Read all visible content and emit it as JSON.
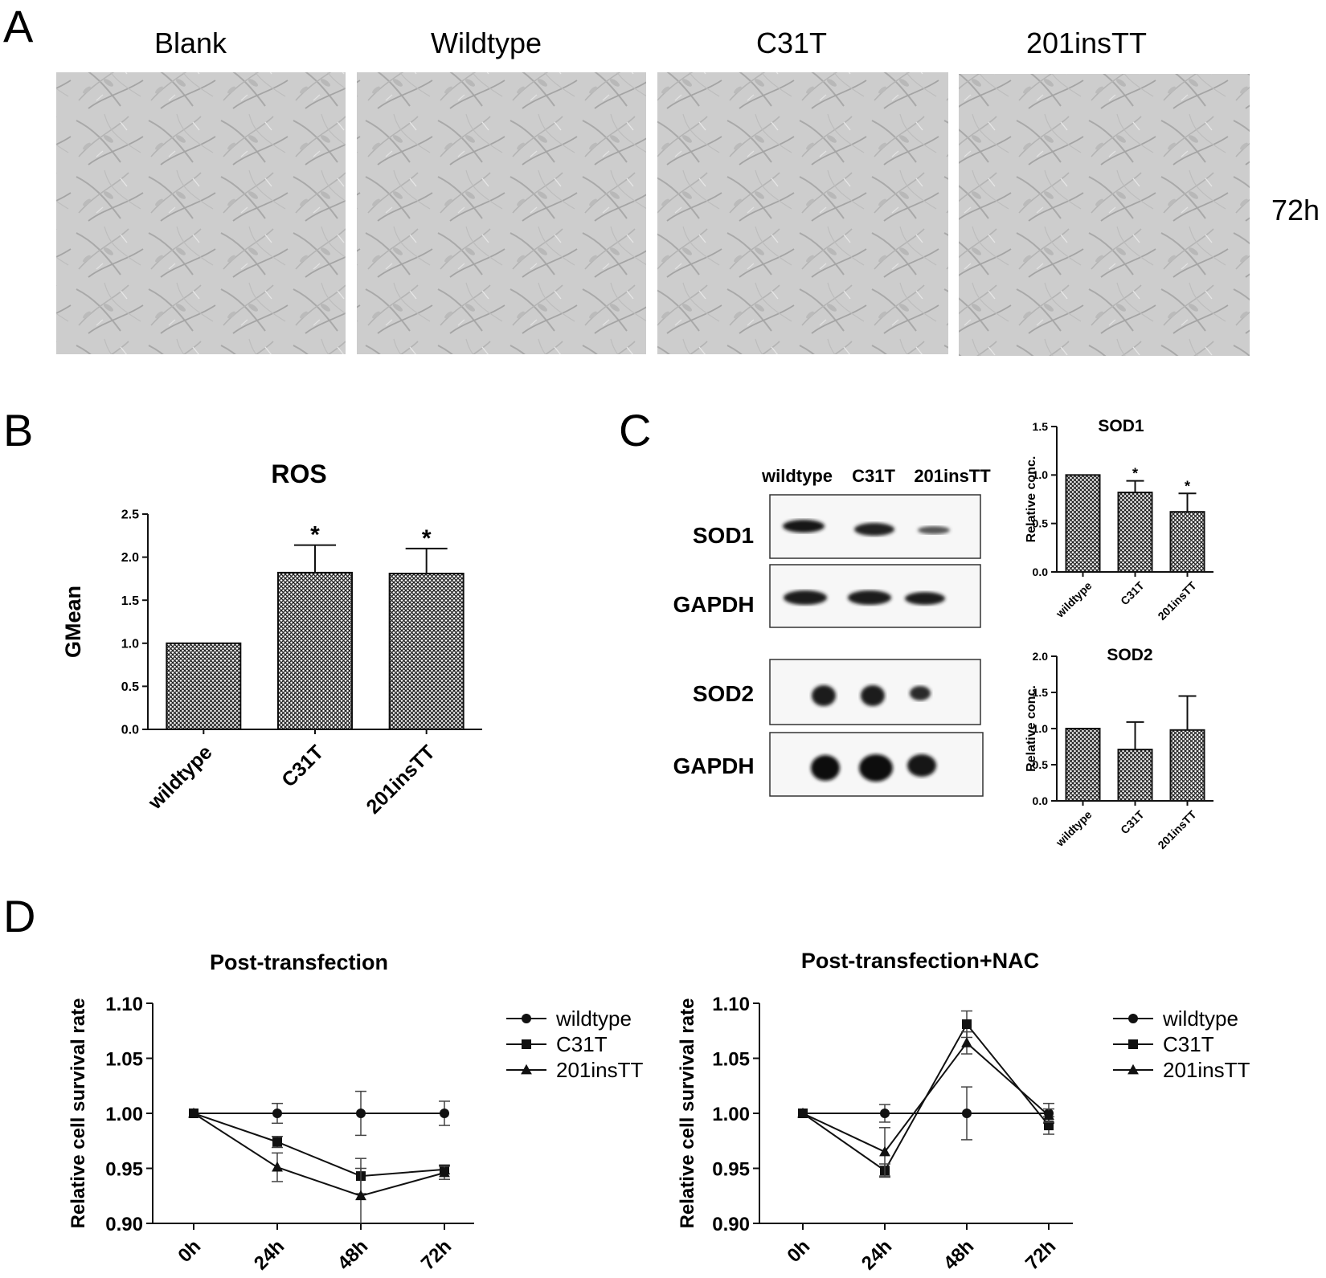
{
  "panel_letters": [
    "A",
    "B",
    "C",
    "D"
  ],
  "panel_a": {
    "labels": [
      "Blank",
      "Wildtype",
      "C31T",
      "201insTT"
    ],
    "time_label": "72h"
  },
  "panel_c": {
    "blot_headers": [
      "wildtype",
      "C31T",
      "201insTT"
    ],
    "blot_rows": [
      "SOD1",
      "GAPDH",
      "SOD2",
      "GAPDH"
    ]
  },
  "chart_data": [
    {
      "id": "ros",
      "type": "bar",
      "title": "ROS",
      "ylabel": "GMean",
      "categories": [
        "wildtype",
        "C31T",
        "201insTT"
      ],
      "values": [
        1.0,
        1.82,
        1.81
      ],
      "errors": [
        0,
        0.32,
        0.29
      ],
      "significance": [
        "",
        "*",
        "*"
      ],
      "ylim": [
        0,
        2.5
      ],
      "yticks": [
        "0.0",
        "0.5",
        "1.0",
        "1.5",
        "2.0",
        "2.5"
      ]
    },
    {
      "id": "sod1",
      "type": "bar",
      "title": "SOD1",
      "ylabel": "Relative conc.",
      "categories": [
        "wildtype",
        "C31T",
        "201insTT"
      ],
      "values": [
        1.0,
        0.82,
        0.62
      ],
      "errors": [
        0,
        0.12,
        0.19
      ],
      "significance": [
        "",
        "*",
        "*"
      ],
      "ylim": [
        0,
        1.5
      ],
      "yticks": [
        "0.0",
        "0.5",
        "1.0",
        "1.5"
      ]
    },
    {
      "id": "sod2",
      "type": "bar",
      "title": "SOD2",
      "ylabel": "Relative conc.",
      "categories": [
        "wildtype",
        "C31T",
        "201insTT"
      ],
      "values": [
        1.0,
        0.71,
        0.98
      ],
      "errors": [
        0,
        0.38,
        0.47
      ],
      "significance": [
        "",
        "",
        ""
      ],
      "ylim": [
        0,
        2.0
      ],
      "yticks": [
        "0.0",
        "0.5",
        "1.0",
        "1.5",
        "2.0"
      ]
    },
    {
      "id": "post",
      "type": "line",
      "title": "Post-transfection",
      "ylabel": "Relative cell survival rate",
      "x": [
        "0h",
        "24h",
        "48h",
        "72h"
      ],
      "ylim": [
        0.9,
        1.1
      ],
      "yticks": [
        "0.90",
        "0.95",
        "1.00",
        "1.05",
        "1.10"
      ],
      "legend_position": "right",
      "series": [
        {
          "name": "wildtype",
          "marker": "circle",
          "values": [
            1.0,
            1.0,
            1.0,
            1.0
          ],
          "errors": [
            0,
            0.009,
            0.02,
            0.011
          ]
        },
        {
          "name": "C31T",
          "marker": "square",
          "values": [
            1.0,
            0.974,
            0.943,
            0.949
          ],
          "errors": [
            0,
            0.005,
            0.016,
            0.004
          ]
        },
        {
          "name": "201insTT",
          "marker": "triangle",
          "values": [
            1.0,
            0.951,
            0.925,
            0.946
          ],
          "errors": [
            0,
            0.013,
            0.025,
            0.006
          ]
        }
      ]
    },
    {
      "id": "nac",
      "type": "line",
      "title": "Post-transfection+NAC",
      "ylabel": "Relative cell survival rate",
      "x": [
        "0h",
        "24h",
        "48h",
        "72h"
      ],
      "ylim": [
        0.9,
        1.1
      ],
      "yticks": [
        "0.90",
        "0.95",
        "1.00",
        "1.05",
        "1.10"
      ],
      "legend_position": "right",
      "series": [
        {
          "name": "wildtype",
          "marker": "circle",
          "values": [
            1.0,
            1.0,
            1.0,
            1.0
          ],
          "errors": [
            0,
            0.008,
            0.024,
            0.009
          ]
        },
        {
          "name": "C31T",
          "marker": "square",
          "values": [
            1.0,
            0.948,
            1.081,
            0.989
          ],
          "errors": [
            0,
            0.006,
            0.012,
            0.008
          ]
        },
        {
          "name": "201insTT",
          "marker": "triangle",
          "values": [
            1.0,
            0.965,
            1.064,
            0.998
          ],
          "errors": [
            0,
            0.022,
            0.01,
            0.006
          ]
        }
      ]
    }
  ]
}
